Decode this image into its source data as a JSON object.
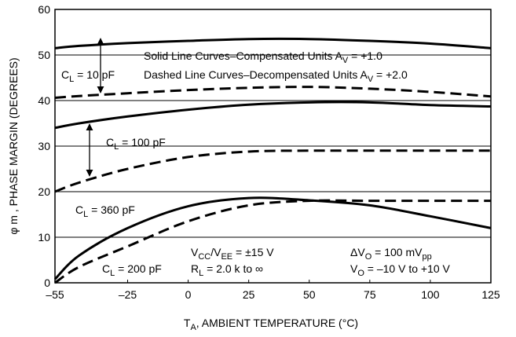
{
  "chart_data": {
    "type": "line",
    "y_label": "φ m , PHASE MARGIN (DEGREES)",
    "x_label": [
      {
        "text": "T"
      },
      {
        "sub": "A"
      },
      {
        "text": ", AMBIENT TEMPERATURE (°C)"
      }
    ],
    "x": [
      -55,
      -45,
      -25,
      0,
      25,
      50,
      75,
      100,
      125
    ],
    "xlim": [
      -55,
      125
    ],
    "xticks": [
      {
        "value": -55,
        "label": "–55"
      },
      {
        "value": -25,
        "label": "–25"
      },
      0,
      25,
      50,
      75,
      100,
      125
    ],
    "ylim": [
      0,
      60
    ],
    "yticks": [
      0,
      10,
      20,
      30,
      40,
      50,
      60
    ],
    "grid": true,
    "series": [
      {
        "style": "solid",
        "color": "#000000",
        "values": [
          51.5,
          52,
          52.6,
          53.1,
          53.5,
          53.5,
          53.1,
          52.5,
          51.5
        ]
      },
      {
        "style": "dashed",
        "color": "#000000",
        "values": [
          40.6,
          41,
          41.6,
          42.3,
          42.8,
          43,
          42.6,
          41.9,
          40.9
        ]
      },
      {
        "style": "solid",
        "color": "#000000",
        "values": [
          34,
          35,
          36.5,
          38,
          39.1,
          39.6,
          39.6,
          39,
          38.7
        ]
      },
      {
        "style": "dashed",
        "color": "#000000",
        "values": [
          20,
          22,
          25,
          27.6,
          28.8,
          29,
          29,
          29,
          29
        ]
      },
      {
        "style": "solid",
        "color": "#000000",
        "values": [
          0.8,
          6,
          12,
          16.8,
          18.6,
          18.1,
          17,
          14.6,
          12
        ]
      },
      {
        "style": "dashed",
        "color": "#000000",
        "values": [
          0,
          3.5,
          8,
          13.5,
          17,
          18,
          18,
          18,
          18
        ]
      }
    ],
    "annotations": [
      [
        {
          "text": "Solid Line Curves–Compensated Units A"
        },
        {
          "sub": "V"
        },
        {
          "text": " = +1.0"
        }
      ],
      [
        {
          "text": "C"
        },
        {
          "sub": "L"
        },
        {
          "text": " = 10 pF"
        }
      ],
      [
        {
          "text": "Dashed Line Curves–Decompensated Units A"
        },
        {
          "sub": "V"
        },
        {
          "text": " = +2.0"
        }
      ],
      [
        {
          "text": "C"
        },
        {
          "sub": "L"
        },
        {
          "text": " = 100 pF"
        }
      ],
      [
        {
          "text": "C"
        },
        {
          "sub": "L"
        },
        {
          "text": " = 360 pF"
        }
      ],
      [
        {
          "text": "C"
        },
        {
          "sub": "L"
        },
        {
          "text": " = 200 pF"
        }
      ],
      [
        {
          "text": "V"
        },
        {
          "sub": "CC"
        },
        {
          "text": "/V"
        },
        {
          "sub": "EE"
        },
        {
          "text": " = ±15 V"
        }
      ],
      [
        {
          "text": "R"
        },
        {
          "sub": "L"
        },
        {
          "text": " = 2.0 k to ∞"
        }
      ],
      [
        {
          "text": "ΔV"
        },
        {
          "sub": "O"
        },
        {
          "text": " = 100 mV"
        },
        {
          "sub": "pp"
        }
      ],
      [
        {
          "text": "V"
        },
        {
          "sub": "O"
        },
        {
          "text": " = –10 V to +10 V"
        }
      ]
    ]
  }
}
